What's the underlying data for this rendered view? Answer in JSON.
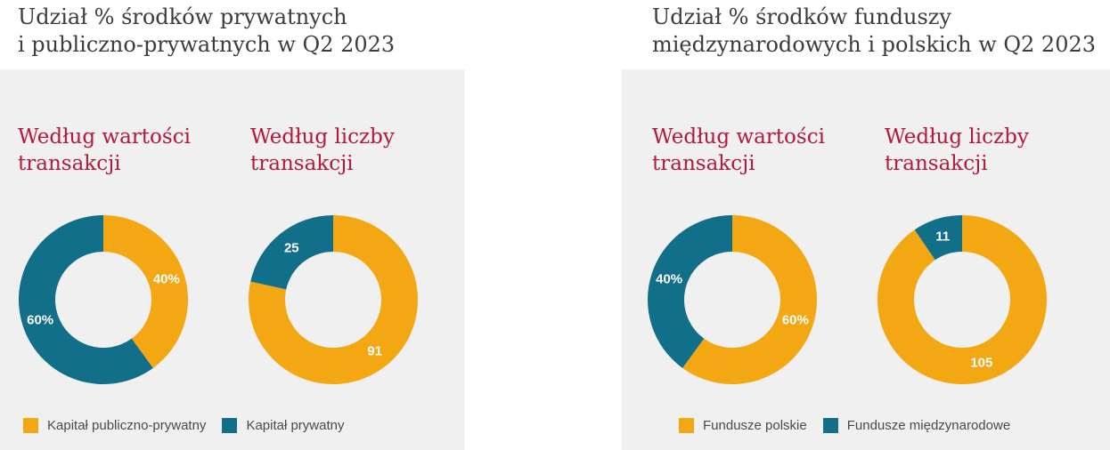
{
  "colors": {
    "orange": "#f3a712",
    "teal": "#126f8a",
    "label": "#ffffff"
  },
  "panels": [
    {
      "title_line1": "Udział % środków prywatnych",
      "title_line2": "i publiczno-prywatnych w Q2 2023",
      "legend": [
        {
          "label": "Kapitał publiczno-prywatny",
          "color": "#f3a712"
        },
        {
          "label": "Kapitał prywatny",
          "color": "#126f8a"
        }
      ]
    },
    {
      "title_line1": "Udział % środków funduszy",
      "title_line2": "międzynarodowych i polskich w Q2 2023",
      "legend": [
        {
          "label": "Fundusze polskie",
          "color": "#f3a712"
        },
        {
          "label": "Fundusze międzynarodowe",
          "color": "#126f8a"
        }
      ]
    }
  ],
  "chart_data": [
    {
      "type": "pie",
      "donut": true,
      "title_line1": "Według wartości",
      "title_line2": "transakcji",
      "slices": [
        {
          "name": "Kapitał publiczno-prywatny",
          "value": 40,
          "label": "40%",
          "color": "#f3a712"
        },
        {
          "name": "Kapitał prywatny",
          "value": 60,
          "label": "60%",
          "color": "#126f8a"
        }
      ]
    },
    {
      "type": "pie",
      "donut": true,
      "title_line1": "Według liczby",
      "title_line2": "transakcji",
      "slices": [
        {
          "name": "Kapitał publiczno-prywatny",
          "value": 91,
          "label": "91",
          "color": "#f3a712"
        },
        {
          "name": "Kapitał prywatny",
          "value": 25,
          "label": "25",
          "color": "#126f8a"
        }
      ]
    },
    {
      "type": "pie",
      "donut": true,
      "title_line1": "Według wartości",
      "title_line2": "transakcji",
      "slices": [
        {
          "name": "Fundusze polskie",
          "value": 60,
          "label": "60%",
          "color": "#f3a712"
        },
        {
          "name": "Fundusze międzynarodowe",
          "value": 40,
          "label": "40%",
          "color": "#126f8a"
        }
      ]
    },
    {
      "type": "pie",
      "donut": true,
      "title_line1": "Według liczby",
      "title_line2": "transakcji",
      "slices": [
        {
          "name": "Fundusze polskie",
          "value": 105,
          "label": "105",
          "color": "#f3a712"
        },
        {
          "name": "Fundusze międzynarodowe",
          "value": 11,
          "label": "11",
          "color": "#126f8a"
        }
      ]
    }
  ]
}
